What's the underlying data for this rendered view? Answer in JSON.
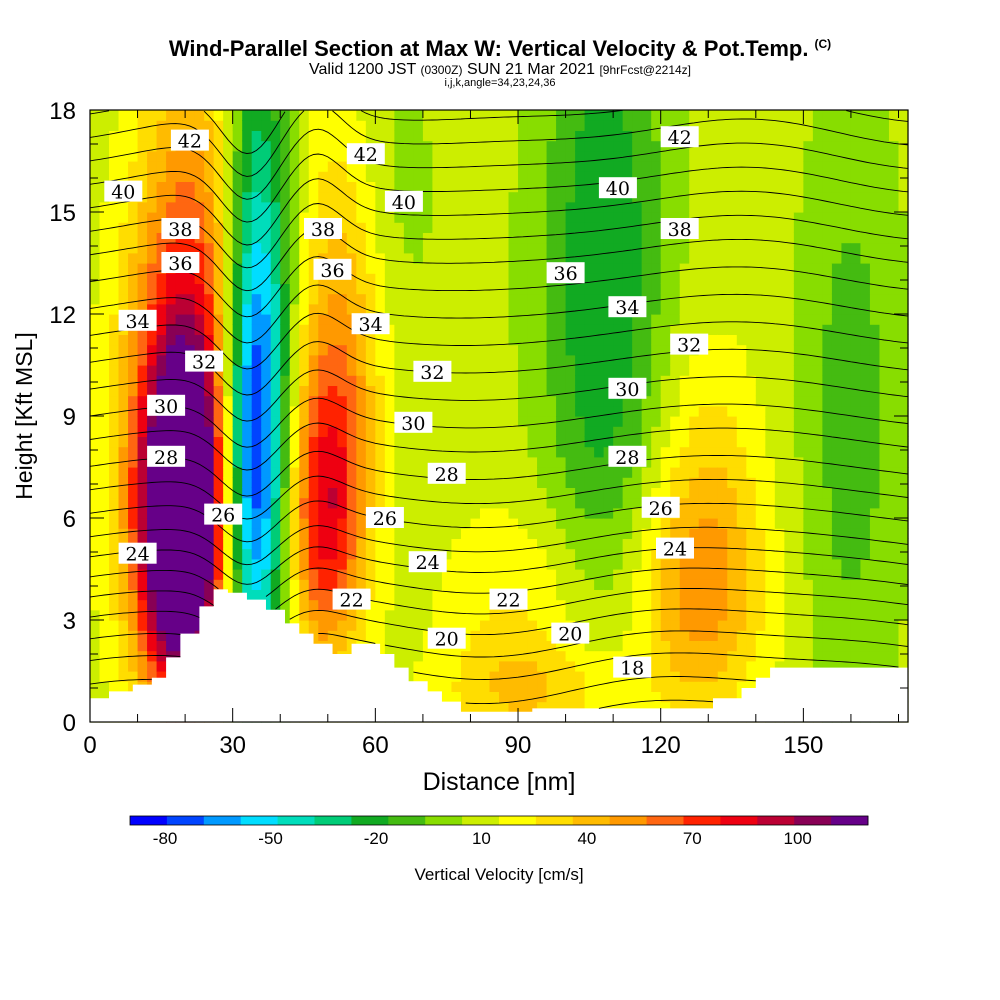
{
  "title": "Wind-Parallel Section at Max W: Vertical Velocity & Pot.Temp.",
  "title_mark": "(C)",
  "subtitle_a": "Valid 1200 JST",
  "subtitle_b": "(0300Z)",
  "subtitle_c": "SUN 21 Mar 2021",
  "subtitle_d": "[9hrFcst@2214z]",
  "subtitle2": "i,j,k,angle=34,23,24,36",
  "chart_data": {
    "type": "heatmap",
    "xlabel": "Distance [nm]",
    "ylabel": "Height [Kft MSL]",
    "xlim": [
      0,
      172
    ],
    "ylim": [
      0,
      18
    ],
    "x_ticks": [
      0,
      30,
      60,
      90,
      120,
      150
    ],
    "y_ticks": [
      0,
      3,
      6,
      9,
      12,
      15,
      18
    ],
    "colorbar": {
      "label": "Vertical Velocity [cm/s]",
      "tick_labels": [
        "-80",
        "-50",
        "-20",
        "10",
        "40",
        "70",
        "100"
      ],
      "tick_values": [
        -80,
        -50,
        -20,
        10,
        40,
        70,
        100
      ],
      "min": -90,
      "max": 120,
      "colors": [
        "#0000ff",
        "#0044ff",
        "#0099ff",
        "#00ddff",
        "#00ddbb",
        "#00cc77",
        "#11aa22",
        "#44bb11",
        "#88dd00",
        "#ccee00",
        "#ffff00",
        "#ffdd00",
        "#ffbb00",
        "#ff9900",
        "#ff6611",
        "#ff2200",
        "#ee0011",
        "#bb0033",
        "#880055",
        "#660088"
      ]
    },
    "terrain_profile": [
      [
        0,
        0.7
      ],
      [
        4,
        0.7
      ],
      [
        4,
        0.9
      ],
      [
        9,
        0.9
      ],
      [
        9,
        1.1
      ],
      [
        13,
        1.1
      ],
      [
        13,
        1.3
      ],
      [
        16,
        1.3
      ],
      [
        16,
        1.9
      ],
      [
        19,
        1.9
      ],
      [
        19,
        2.6
      ],
      [
        23,
        2.6
      ],
      [
        23,
        3.4
      ],
      [
        26,
        3.4
      ],
      [
        26,
        3.9
      ],
      [
        29,
        3.9
      ],
      [
        29,
        3.8
      ],
      [
        33,
        3.8
      ],
      [
        33,
        3.6
      ],
      [
        37,
        3.6
      ],
      [
        37,
        3.3
      ],
      [
        41,
        3.3
      ],
      [
        41,
        2.9
      ],
      [
        44,
        2.9
      ],
      [
        44,
        2.6
      ],
      [
        47,
        2.6
      ],
      [
        47,
        2.3
      ],
      [
        51,
        2.3
      ],
      [
        51,
        2.0
      ],
      [
        55,
        2.0
      ],
      [
        55,
        2.3
      ],
      [
        61,
        2.3
      ],
      [
        61,
        2.0
      ],
      [
        64,
        2.0
      ],
      [
        64,
        1.6
      ],
      [
        67,
        1.6
      ],
      [
        67,
        1.2
      ],
      [
        71,
        1.2
      ],
      [
        71,
        0.9
      ],
      [
        74,
        0.9
      ],
      [
        74,
        0.6
      ],
      [
        78,
        0.6
      ],
      [
        78,
        0.3
      ],
      [
        93,
        0.3
      ],
      [
        93,
        0.4
      ],
      [
        131,
        0.4
      ],
      [
        131,
        0.7
      ],
      [
        137,
        0.7
      ],
      [
        137,
        1.0
      ],
      [
        140,
        1.0
      ],
      [
        140,
        1.3
      ],
      [
        143,
        1.3
      ],
      [
        143,
        1.6
      ],
      [
        172,
        1.6
      ]
    ],
    "vertical_velocity_features": [
      {
        "x": 19,
        "y": 5.6,
        "value": 110,
        "sx": 5.5,
        "sy": 3.0
      },
      {
        "x": 20,
        "y": 7.0,
        "value": 70,
        "sx": 9.0,
        "sy": 5.0
      },
      {
        "x": 22,
        "y": 13.0,
        "value": 40,
        "sx": 9.0,
        "sy": 6.0
      },
      {
        "x": 34,
        "y": 7.0,
        "value": -80,
        "sx": 5.0,
        "sy": 4.5
      },
      {
        "x": 35,
        "y": 13.0,
        "value": -55,
        "sx": 5.0,
        "sy": 6.0
      },
      {
        "x": 49,
        "y": 6.0,
        "value": 60,
        "sx": 5.5,
        "sy": 3.0
      },
      {
        "x": 53,
        "y": 11.0,
        "value": 40,
        "sx": 6.5,
        "sy": 5.0
      },
      {
        "x": 62,
        "y": 15.5,
        "value": -10,
        "sx": 7.0,
        "sy": 3.5
      },
      {
        "x": 108,
        "y": 13.0,
        "value": -35,
        "sx": 9.0,
        "sy": 7.0
      },
      {
        "x": 90,
        "y": 3.0,
        "value": 20,
        "sx": 12.0,
        "sy": 2.5
      },
      {
        "x": 128,
        "y": 3.5,
        "value": 38,
        "sx": 10.0,
        "sy": 2.5
      },
      {
        "x": 130,
        "y": 7.5,
        "value": 20,
        "sx": 8.0,
        "sy": 3.0
      },
      {
        "x": 160,
        "y": 9.0,
        "value": -20,
        "sx": 7.0,
        "sy": 6.0
      },
      {
        "x": 95,
        "y": 0.8,
        "value": 20,
        "sx": 15.0,
        "sy": 1.0
      }
    ],
    "potential_temperature_contours": {
      "levels": [
        18,
        19,
        20,
        21,
        22,
        23,
        24,
        25,
        26,
        27,
        28,
        29,
        30,
        31,
        32,
        33,
        34,
        35,
        36,
        37,
        38,
        39,
        40,
        41,
        42,
        43
      ],
      "base_height": [
        0.3,
        1.0,
        1.7,
        2.35,
        3.0,
        3.6,
        4.2,
        4.8,
        5.4,
        6.1,
        6.8,
        7.5,
        8.3,
        9.0,
        9.8,
        10.6,
        11.4,
        12.2,
        13.0,
        13.8,
        14.5,
        15.2,
        15.9,
        16.6,
        17.3,
        18.0
      ],
      "labels": [
        {
          "text": "24",
          "x": 10,
          "y": 4.95
        },
        {
          "text": "26",
          "x": 28,
          "y": 6.1
        },
        {
          "text": "28",
          "x": 16,
          "y": 7.8
        },
        {
          "text": "30",
          "x": 16,
          "y": 9.3
        },
        {
          "text": "32",
          "x": 24,
          "y": 10.6
        },
        {
          "text": "34",
          "x": 10,
          "y": 11.8
        },
        {
          "text": "36",
          "x": 19,
          "y": 13.5
        },
        {
          "text": "38",
          "x": 19,
          "y": 14.5
        },
        {
          "text": "40",
          "x": 7,
          "y": 15.6
        },
        {
          "text": "42",
          "x": 21,
          "y": 17.1
        },
        {
          "text": "22",
          "x": 55,
          "y": 3.6
        },
        {
          "text": "24",
          "x": 71,
          "y": 4.7
        },
        {
          "text": "26",
          "x": 62,
          "y": 6.0
        },
        {
          "text": "28",
          "x": 75,
          "y": 7.3
        },
        {
          "text": "30",
          "x": 68,
          "y": 8.8
        },
        {
          "text": "32",
          "x": 72,
          "y": 10.3
        },
        {
          "text": "34",
          "x": 59,
          "y": 11.7
        },
        {
          "text": "36",
          "x": 51,
          "y": 13.3
        },
        {
          "text": "38",
          "x": 49,
          "y": 14.5
        },
        {
          "text": "40",
          "x": 66,
          "y": 15.3
        },
        {
          "text": "42",
          "x": 58,
          "y": 16.7
        },
        {
          "text": "20",
          "x": 75,
          "y": 2.45
        },
        {
          "text": "22",
          "x": 88,
          "y": 3.6
        },
        {
          "text": "20",
          "x": 101,
          "y": 2.6
        },
        {
          "text": "18",
          "x": 114,
          "y": 1.6
        },
        {
          "text": "24",
          "x": 123,
          "y": 5.1
        },
        {
          "text": "26",
          "x": 120,
          "y": 6.3
        },
        {
          "text": "28",
          "x": 113,
          "y": 7.8
        },
        {
          "text": "30",
          "x": 113,
          "y": 9.8
        },
        {
          "text": "32",
          "x": 126,
          "y": 11.1
        },
        {
          "text": "34",
          "x": 113,
          "y": 12.2
        },
        {
          "text": "36",
          "x": 100,
          "y": 13.2
        },
        {
          "text": "38",
          "x": 124,
          "y": 14.5
        },
        {
          "text": "40",
          "x": 111,
          "y": 15.7
        },
        {
          "text": "42",
          "x": 124,
          "y": 17.2
        }
      ]
    }
  }
}
